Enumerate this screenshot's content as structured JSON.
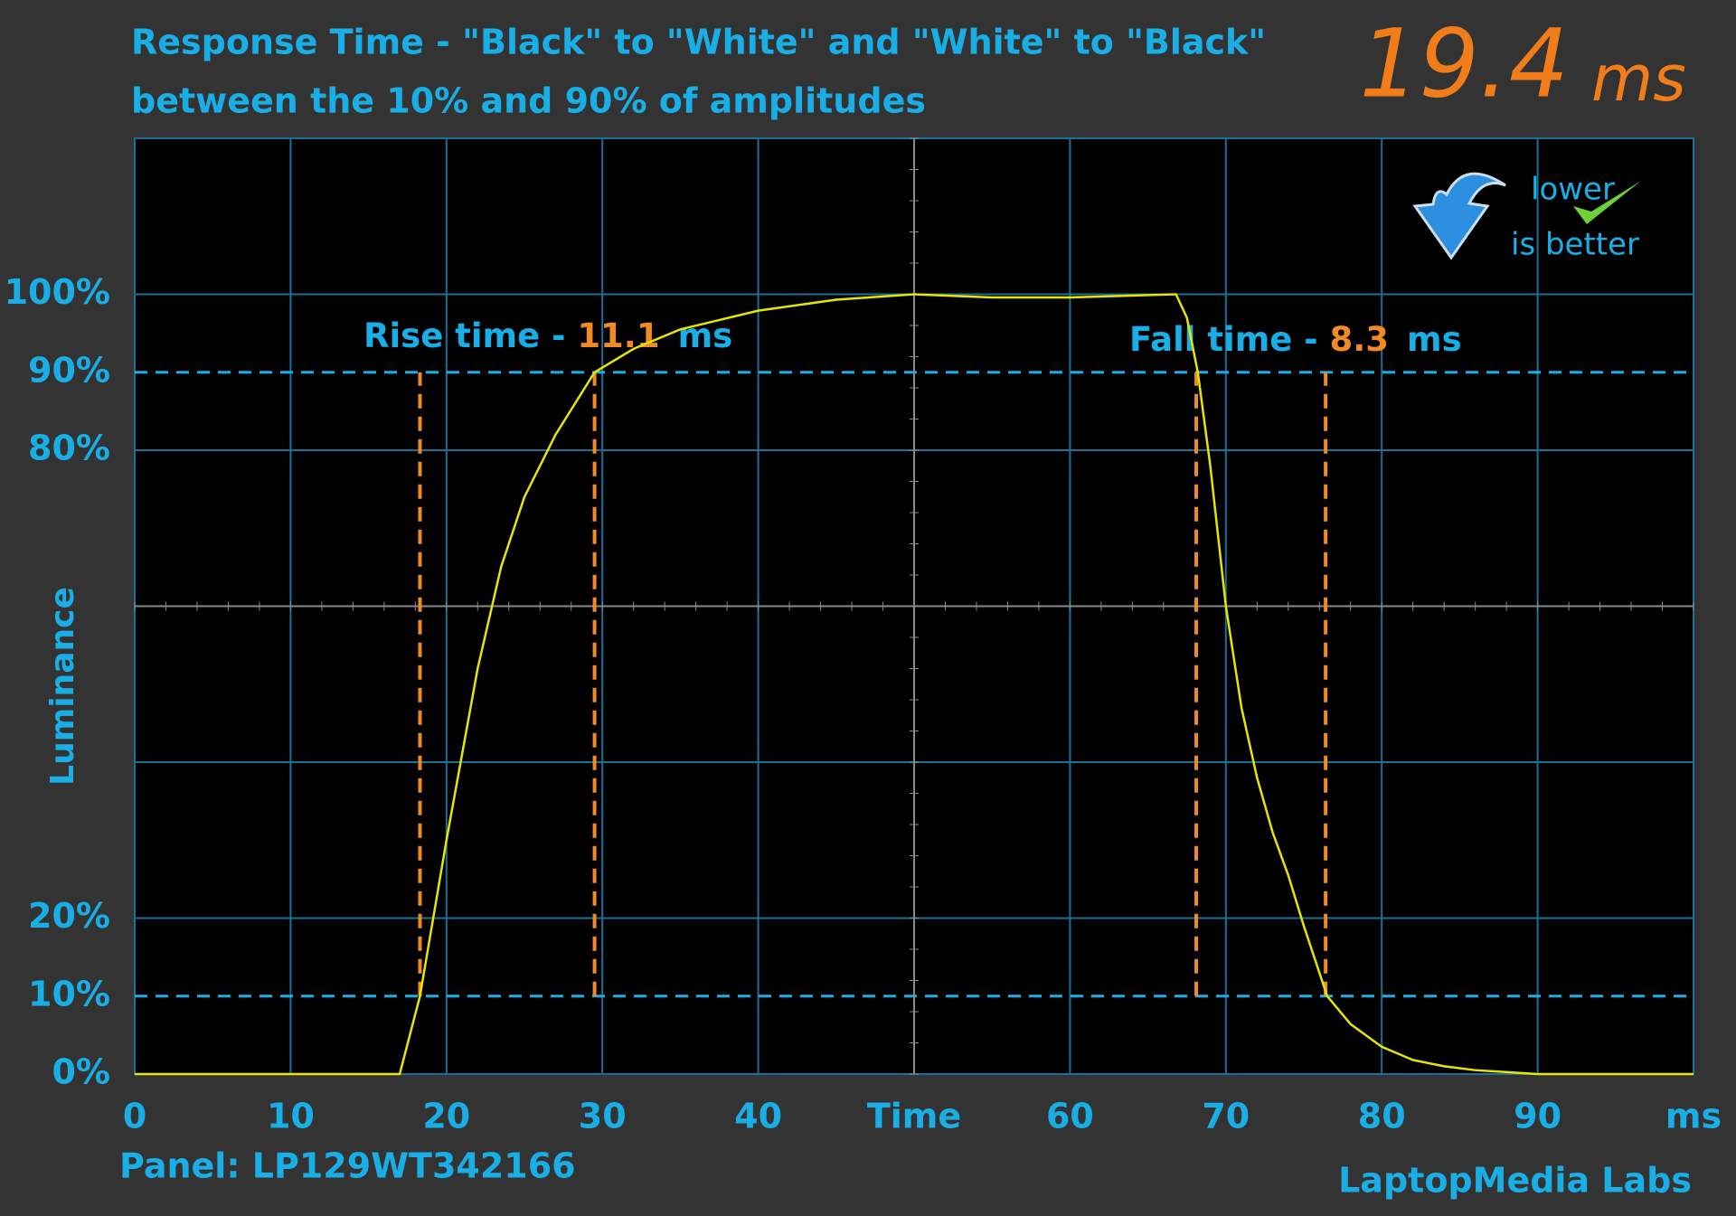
{
  "chart_data": {
    "type": "line",
    "title": "Response Time - \"Black\" to \"White\" and \"White\" to \"Black\"",
    "subtitle": "between the 10% and 90% of amplitudes",
    "ylabel": "Luminance",
    "total": "19.4",
    "total_unit": "ms",
    "badge": [
      "lower",
      "is better"
    ],
    "rise_label": "Rise time - ",
    "rise_value": "11.1",
    "rise_unit": "ms",
    "fall_label": "Fall time - ",
    "fall_value": "8.3",
    "fall_unit": "ms",
    "panel": "Panel: LP129WT342166",
    "credit": "LaptopMedia Labs",
    "xlim": [
      0,
      100
    ],
    "ylim": [
      0,
      120
    ],
    "xticks": [
      0,
      10,
      20,
      30,
      40,
      {
        "value": 50,
        "label": "Time"
      },
      60,
      70,
      80,
      90,
      {
        "value": 100,
        "label": "ms"
      }
    ],
    "yticks": [
      {
        "value": 0,
        "label": "0%"
      },
      {
        "value": 10,
        "label": "10%"
      },
      {
        "value": 20,
        "label": "20%"
      },
      {
        "value": 40,
        "label": null
      },
      {
        "value": 60,
        "label": null
      },
      {
        "value": 80,
        "label": "80%"
      },
      {
        "value": 90,
        "label": "90%"
      },
      {
        "value": 100,
        "label": "100%"
      }
    ],
    "rise_markers": [
      18.3,
      29.5
    ],
    "fall_markers": [
      68.1,
      76.4
    ],
    "series": [
      {
        "color": "#e6e600",
        "x": [
          0,
          10,
          17,
          18.3,
          20,
          22,
          23.5,
          25,
          27,
          29.5,
          32,
          35,
          40,
          45,
          50,
          55,
          60,
          66.8,
          67.5,
          68.2,
          69,
          70,
          71,
          72,
          73,
          74,
          75,
          76.5,
          78,
          80,
          82,
          84,
          86,
          90,
          100
        ],
        "values": [
          0,
          0,
          0,
          10,
          30,
          52,
          65,
          74,
          82,
          90,
          93,
          95.5,
          97.9,
          99.3,
          100,
          99.6,
          99.6,
          100,
          97,
          90,
          78,
          60,
          47,
          38,
          31,
          25.5,
          19,
          10,
          6.4,
          3.5,
          1.8,
          1,
          0.5,
          0,
          0
        ]
      }
    ]
  }
}
